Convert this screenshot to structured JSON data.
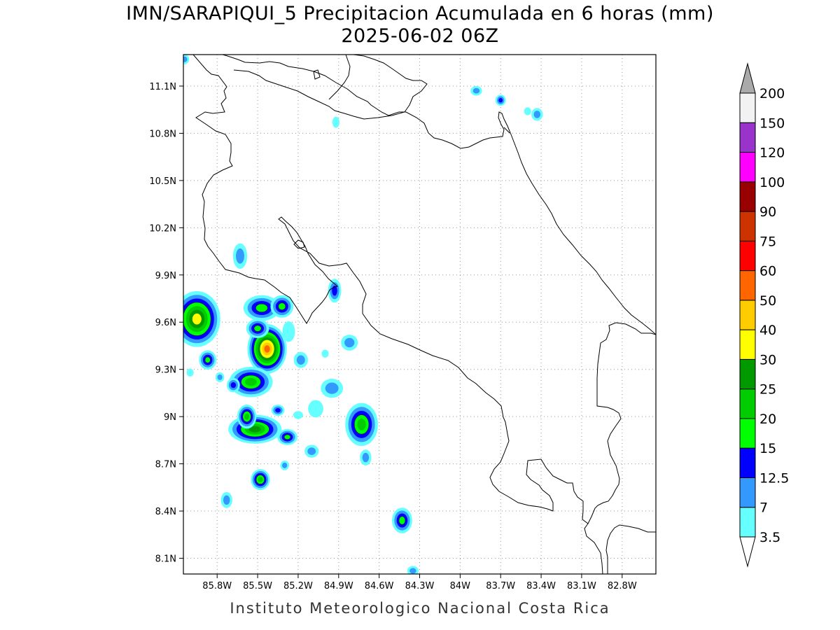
{
  "title": {
    "line1": "IMN/SARAPIQUI_5 Precipitacion Acumulada en 6 horas (mm)",
    "line2": "2025-06-02 06Z"
  },
  "footer": "Instituto Meteorologico Nacional Costa Rica",
  "map": {
    "lon_range": [
      -86.05,
      -82.55
    ],
    "lat_range": [
      8.0,
      11.3
    ],
    "lat_ticks": [
      {
        "value": 11.1,
        "label": "11.1N"
      },
      {
        "value": 10.8,
        "label": "10.8N"
      },
      {
        "value": 10.5,
        "label": "10.5N"
      },
      {
        "value": 10.2,
        "label": "10.2N"
      },
      {
        "value": 9.9,
        "label": "9.9N"
      },
      {
        "value": 9.6,
        "label": "9.6N"
      },
      {
        "value": 9.3,
        "label": "9.3N"
      },
      {
        "value": 9.0,
        "label": "9N"
      },
      {
        "value": 8.7,
        "label": "8.7N"
      },
      {
        "value": 8.4,
        "label": "8.4N"
      },
      {
        "value": 8.1,
        "label": "8.1N"
      }
    ],
    "lon_ticks": [
      {
        "value": -85.8,
        "label": "85.8W"
      },
      {
        "value": -85.5,
        "label": "85.5W"
      },
      {
        "value": -85.2,
        "label": "85.2W"
      },
      {
        "value": -84.9,
        "label": "84.9W"
      },
      {
        "value": -84.6,
        "label": "84.6W"
      },
      {
        "value": -84.3,
        "label": "84.3W"
      },
      {
        "value": -84.0,
        "label": "84W"
      },
      {
        "value": -83.7,
        "label": "83.7W"
      },
      {
        "value": -83.4,
        "label": "83.4W"
      },
      {
        "value": -83.1,
        "label": "83.1W"
      },
      {
        "value": -82.8,
        "label": "82.8W"
      }
    ],
    "grid": true
  },
  "colorbar": {
    "levels": [
      "3.5",
      "7",
      "12.5",
      "15",
      "20",
      "25",
      "30",
      "40",
      "50",
      "60",
      "75",
      "90",
      "100",
      "120",
      "150",
      "200"
    ],
    "colors": [
      "#66ffff",
      "#3399ff",
      "#0000ff",
      "#00ff00",
      "#00cc00",
      "#009900",
      "#ffff00",
      "#ffcc00",
      "#ff6600",
      "#ff0000",
      "#cc3300",
      "#990000",
      "#ff00ff",
      "#9933cc",
      "#f2f2f2"
    ],
    "over_color": "#aaaaaa",
    "under_color": "#ffffff"
  },
  "precip_cells": [
    {
      "lon": -85.95,
      "lat": 9.62,
      "rx": 0.13,
      "ry": 0.14,
      "level": 7
    },
    {
      "lon": -85.47,
      "lat": 9.69,
      "rx": 0.11,
      "ry": 0.06,
      "level": 4
    },
    {
      "lon": -85.32,
      "lat": 9.7,
      "rx": 0.06,
      "ry": 0.05,
      "level": 4
    },
    {
      "lon": -85.43,
      "lat": 9.43,
      "rx": 0.09,
      "ry": 0.11,
      "level": 9
    },
    {
      "lon": -85.5,
      "lat": 9.56,
      "rx": 0.06,
      "ry": 0.04,
      "level": 4
    },
    {
      "lon": -85.87,
      "lat": 9.36,
      "rx": 0.04,
      "ry": 0.04,
      "level": 4
    },
    {
      "lon": -85.55,
      "lat": 9.22,
      "rx": 0.13,
      "ry": 0.07,
      "level": 5
    },
    {
      "lon": -85.52,
      "lat": 8.92,
      "rx": 0.16,
      "ry": 0.06,
      "level": 6
    },
    {
      "lon": -85.58,
      "lat": 9.0,
      "rx": 0.04,
      "ry": 0.05,
      "level": 5
    },
    {
      "lon": -85.28,
      "lat": 8.87,
      "rx": 0.05,
      "ry": 0.03,
      "level": 4
    },
    {
      "lon": -84.73,
      "lat": 8.95,
      "rx": 0.09,
      "ry": 0.11,
      "level": 5
    },
    {
      "lon": -85.48,
      "lat": 8.6,
      "rx": 0.04,
      "ry": 0.04,
      "level": 5
    },
    {
      "lon": -84.43,
      "lat": 8.34,
      "rx": 0.05,
      "ry": 0.06,
      "level": 4
    },
    {
      "lon": -84.82,
      "lat": 9.47,
      "rx": 0.05,
      "ry": 0.04,
      "level": 2
    },
    {
      "lon": -84.93,
      "lat": 9.8,
      "rx": 0.03,
      "ry": 0.06,
      "level": 3
    },
    {
      "lon": -84.7,
      "lat": 8.74,
      "rx": 0.03,
      "ry": 0.04,
      "level": 2
    },
    {
      "lon": -85.35,
      "lat": 9.04,
      "rx": 0.03,
      "ry": 0.02,
      "level": 3
    },
    {
      "lon": -85.63,
      "lat": 10.02,
      "rx": 0.04,
      "ry": 0.07,
      "level": 2
    },
    {
      "lon": -85.1,
      "lat": 8.78,
      "rx": 0.04,
      "ry": 0.03,
      "level": 2
    },
    {
      "lon": -85.07,
      "lat": 9.05,
      "rx": 0.05,
      "ry": 0.05,
      "level": 1
    },
    {
      "lon": -84.95,
      "lat": 9.18,
      "rx": 0.07,
      "ry": 0.05,
      "level": 2
    },
    {
      "lon": -85.18,
      "lat": 9.36,
      "rx": 0.04,
      "ry": 0.04,
      "level": 2
    },
    {
      "lon": -85.27,
      "lat": 9.54,
      "rx": 0.04,
      "ry": 0.06,
      "level": 1
    },
    {
      "lon": -85.73,
      "lat": 8.47,
      "rx": 0.03,
      "ry": 0.04,
      "level": 2
    },
    {
      "lon": -85.3,
      "lat": 8.69,
      "rx": 0.02,
      "ry": 0.02,
      "level": 2
    },
    {
      "lon": -83.88,
      "lat": 11.07,
      "rx": 0.03,
      "ry": 0.02,
      "level": 2
    },
    {
      "lon": -83.7,
      "lat": 11.01,
      "rx": 0.02,
      "ry": 0.02,
      "level": 3
    },
    {
      "lon": -83.43,
      "lat": 10.92,
      "rx": 0.03,
      "ry": 0.03,
      "level": 2
    },
    {
      "lon": -85.68,
      "lat": 9.2,
      "rx": 0.03,
      "ry": 0.03,
      "level": 3
    },
    {
      "lon": -85.78,
      "lat": 9.25,
      "rx": 0.02,
      "ry": 0.02,
      "level": 2
    },
    {
      "lon": -84.35,
      "lat": 8.02,
      "rx": 0.03,
      "ry": 0.02,
      "level": 2
    },
    {
      "lon": -85.2,
      "lat": 9.01,
      "rx": 0.03,
      "ry": 0.02,
      "level": 1
    },
    {
      "lon": -84.92,
      "lat": 10.87,
      "rx": 0.02,
      "ry": 0.03,
      "level": 1
    },
    {
      "lon": -86.0,
      "lat": 9.28,
      "rx": 0.02,
      "ry": 0.02,
      "level": 1
    },
    {
      "lon": -85.0,
      "lat": 9.4,
      "rx": 0.02,
      "ry": 0.02,
      "level": 1
    },
    {
      "lon": -83.5,
      "lat": 10.94,
      "rx": 0.02,
      "ry": 0.02,
      "level": 1
    },
    {
      "lon": -86.04,
      "lat": 11.27,
      "rx": 0.02,
      "ry": 0.02,
      "level": 2
    }
  ]
}
